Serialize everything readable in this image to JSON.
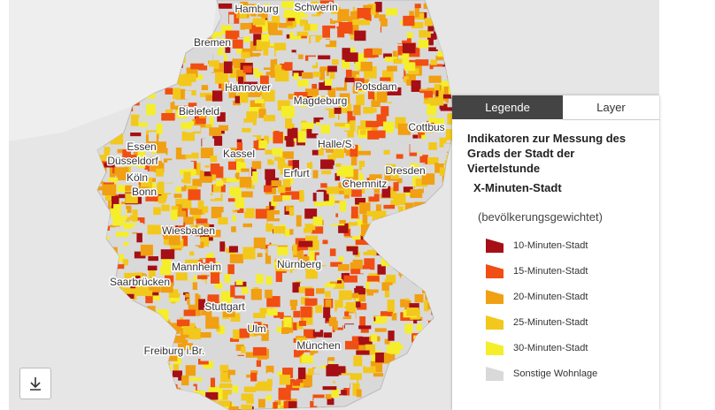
{
  "map": {
    "cities": [
      "Hamburg",
      "Schwerin",
      "Bremen",
      "Hannover",
      "Magdeburg",
      "Potsdam",
      "Bielefeld",
      "Cottbus",
      "Essen",
      "Düsseldorf",
      "Halle/S.",
      "Kassel",
      "Dresden",
      "Köln",
      "Bonn",
      "Erfurt",
      "Chemnitz",
      "Wiesbaden",
      "Mannheim",
      "Nürnberg",
      "Saarbrücken",
      "Stuttgart",
      "Ulm",
      "Freiburg i.Br.",
      "München"
    ]
  },
  "legend": {
    "tabs": [
      "Legende",
      "Layer"
    ],
    "title": "Indikatoren zur Messung des Grads der Stadt der Viertelstunde",
    "subtitle": "X-Minuten-Stadt",
    "note": "(bevölkerungsgewichtet)",
    "items": [
      {
        "label": "10-Minuten-Stadt",
        "color": "#a50f15"
      },
      {
        "label": "15-Minuten-Stadt",
        "color": "#f04e12"
      },
      {
        "label": "20-Minuten-Stadt",
        "color": "#f0a012"
      },
      {
        "label": "25-Minuten-Stadt",
        "color": "#f2c81c"
      },
      {
        "label": "30-Minuten-Stadt",
        "color": "#f5ee2a"
      },
      {
        "label": "Sonstige Wohnlage",
        "color": "#d9d9d9"
      }
    ]
  }
}
